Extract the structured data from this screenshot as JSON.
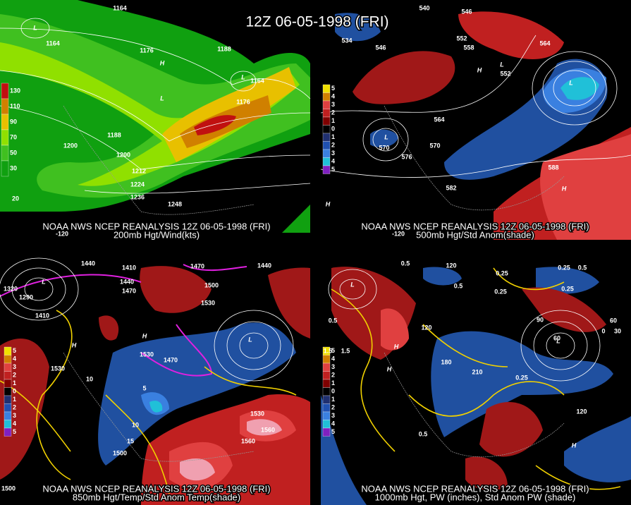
{
  "title": "12Z 06-05-1998 (FRI)",
  "panels": [
    {
      "caption": "NOAA NWS NCEP REANALYSIS 12Z 06-05-1998 (FRI)",
      "subtitle": "200mb Hgt/Wind(kts)",
      "legend": [
        "130",
        "110",
        "90",
        "70",
        "50",
        "30"
      ],
      "labels": [
        "1164",
        "1164",
        "1176",
        "1188",
        "1164",
        "1176",
        "1188",
        "1200",
        "1200",
        "1212",
        "1224",
        "1236",
        "1248",
        "-120",
        "L",
        "H",
        "L",
        "L",
        "20"
      ]
    },
    {
      "caption": "NOAA NWS NCEP REANALYSIS 12Z 06-05-1998 (FRI)",
      "subtitle": "500mb Hgt/Std Anom(shade)",
      "legend": [
        "5",
        "4",
        "3",
        "2",
        "1",
        "0",
        "1",
        "2",
        "3",
        "4",
        "5"
      ],
      "labels": [
        "540",
        "546",
        "534",
        "546",
        "552",
        "558",
        "564",
        "552",
        "564",
        "570",
        "576",
        "570",
        "582",
        "588",
        "-120",
        "H",
        "L",
        "L",
        "H",
        "H",
        "L"
      ]
    },
    {
      "caption": "NOAA NWS NCEP REANALYSIS 12Z 06-05-1998 (FRI)",
      "subtitle": "850mb Hgt/Temp/Std Anom Temp(shade)",
      "legend": [
        "5",
        "4",
        "3",
        "2",
        "1",
        "0",
        "1",
        "2",
        "3",
        "4",
        "5"
      ],
      "labels": [
        "1440",
        "1410",
        "1440",
        "1470",
        "1500",
        "1440",
        "1470",
        "1530",
        "1320",
        "1290",
        "1410",
        "1530",
        "1530",
        "1470",
        "1500",
        "1530",
        "1560",
        "1560",
        "1500",
        "10",
        "5",
        "10",
        "15",
        "L",
        "H",
        "H",
        "L"
      ]
    },
    {
      "caption": "NOAA NWS NCEP REANALYSIS 12Z 06-05-1998 (FRI)",
      "subtitle": "1000mb Hgt, PW (inches), Std Anom PW (shade)",
      "legend": [
        "5",
        "4",
        "3",
        "2",
        "1",
        "0",
        "1",
        "2",
        "3",
        "4",
        "5"
      ],
      "labels": [
        "0.5",
        "120",
        "0.25",
        "0.25",
        "0.5",
        "0.25",
        "0.25",
        "0.5",
        "0.5",
        "1.5",
        "1.5",
        "120",
        "210",
        "180",
        "90",
        "60",
        "30",
        "60",
        "0",
        "0.25",
        "0.5",
        "120",
        "L",
        "H",
        "H",
        "L",
        "H"
      ]
    }
  ]
}
